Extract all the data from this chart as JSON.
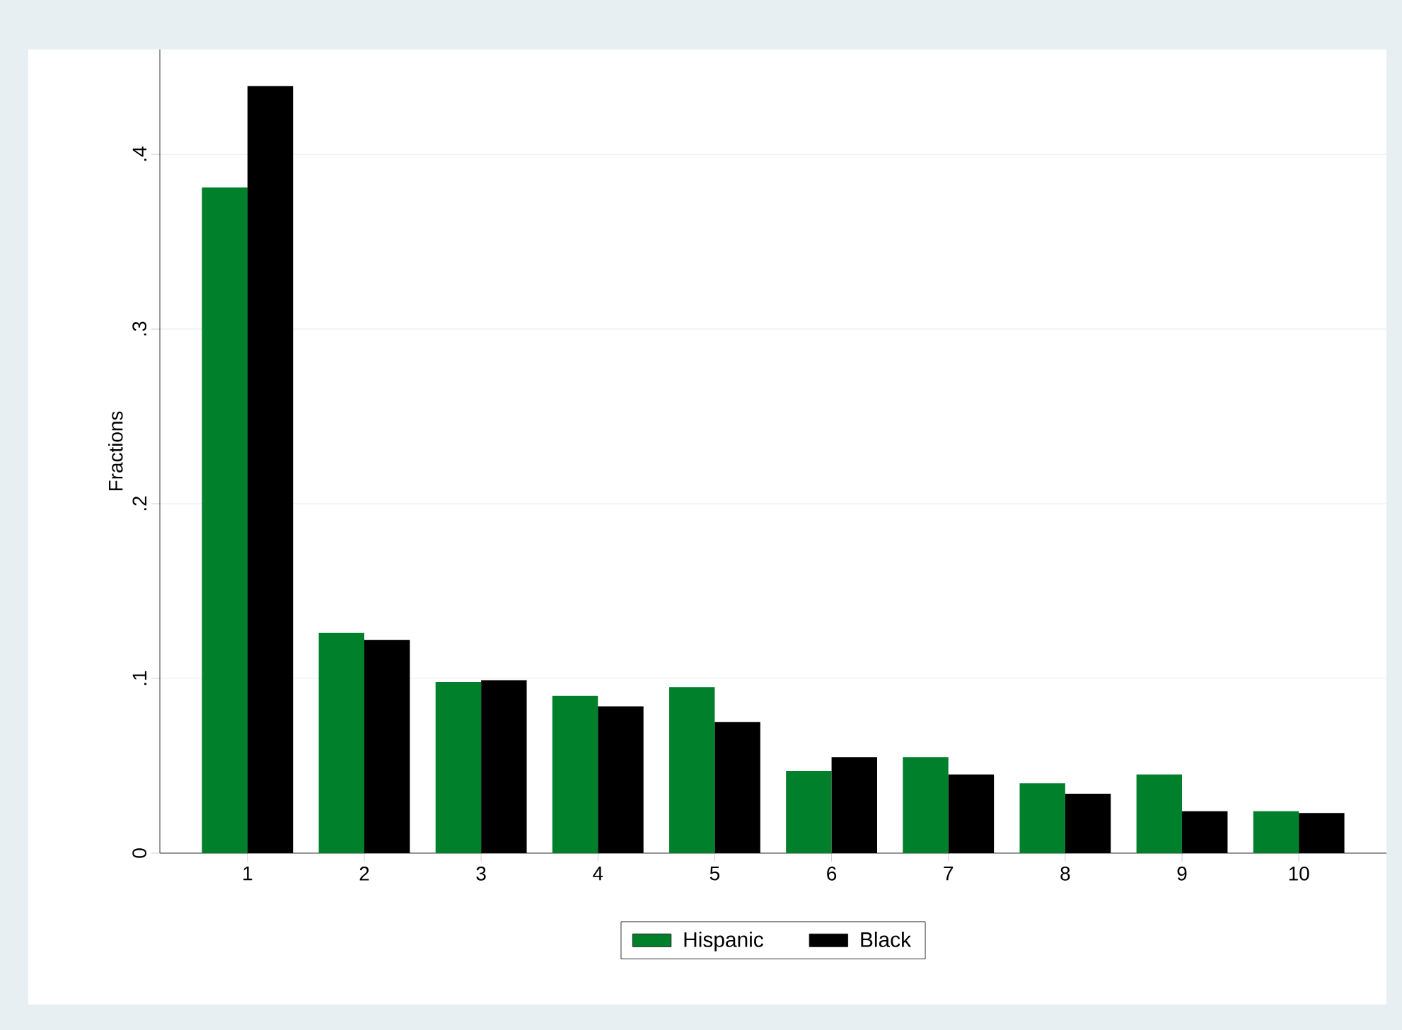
{
  "chart_data": {
    "type": "bar",
    "ylabel": "Fractions",
    "categories": [
      "1",
      "2",
      "3",
      "4",
      "5",
      "6",
      "7",
      "8",
      "9",
      "10"
    ],
    "series": [
      {
        "name": "Hispanic",
        "color": "#00802b",
        "values": [
          0.381,
          0.126,
          0.098,
          0.09,
          0.095,
          0.047,
          0.055,
          0.04,
          0.045,
          0.024
        ]
      },
      {
        "name": "Black",
        "color": "#000000",
        "values": [
          0.439,
          0.122,
          0.099,
          0.084,
          0.075,
          0.055,
          0.045,
          0.034,
          0.024,
          0.023
        ]
      }
    ],
    "ylim": [
      0,
      0.46
    ],
    "yticks": [
      0,
      {
        "value": 0.1,
        "label": ".1"
      },
      {
        "value": 0.2,
        "label": ".2"
      },
      {
        "value": 0.3,
        "label": ".3"
      },
      {
        "value": 0.4,
        "label": ".4"
      }
    ],
    "grid": "y",
    "legend": "bottom"
  }
}
